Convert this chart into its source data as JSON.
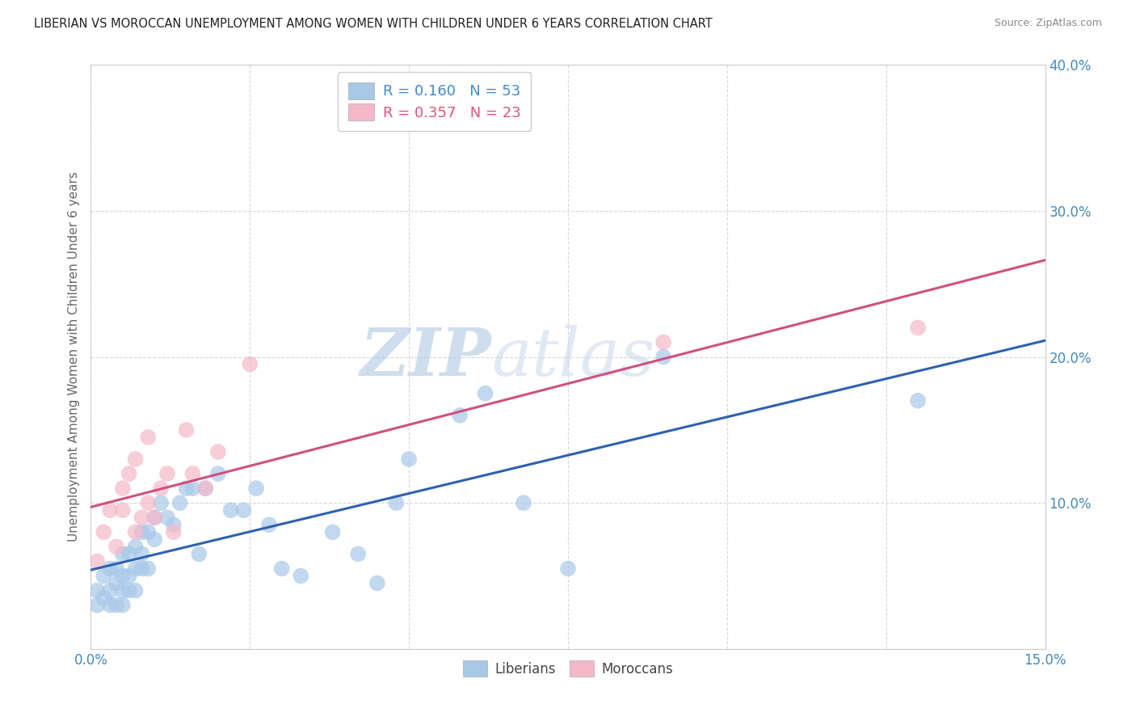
{
  "title": "LIBERIAN VS MOROCCAN UNEMPLOYMENT AMONG WOMEN WITH CHILDREN UNDER 6 YEARS CORRELATION CHART",
  "source": "Source: ZipAtlas.com",
  "ylabel": "Unemployment Among Women with Children Under 6 years",
  "xlim": [
    0,
    0.15
  ],
  "ylim": [
    0,
    0.4
  ],
  "xticks": [
    0.0,
    0.025,
    0.05,
    0.075,
    0.1,
    0.125,
    0.15
  ],
  "yticks": [
    0.0,
    0.1,
    0.2,
    0.3,
    0.4
  ],
  "liberian_R": 0.16,
  "liberian_N": 53,
  "moroccan_R": 0.357,
  "moroccan_N": 23,
  "liberian_color": "#a8c8e8",
  "moroccan_color": "#f4b8c8",
  "liberian_line_color": "#3060b0",
  "moroccan_line_color": "#d05080",
  "liberian_legend_color": "#4488cc",
  "moroccan_legend_color": "#dd5577",
  "watermark": "ZIPatlas",
  "watermark_color": "#d0e0f0",
  "background_color": "#ffffff",
  "grid_color": "#d8d8d8",
  "title_color": "#222222",
  "axis_label_color": "#4488bb",
  "tick_color": "#4488bb",
  "liberian_x": [
    0.001,
    0.001,
    0.002,
    0.002,
    0.003,
    0.003,
    0.003,
    0.004,
    0.004,
    0.004,
    0.005,
    0.005,
    0.005,
    0.005,
    0.006,
    0.006,
    0.006,
    0.007,
    0.007,
    0.007,
    0.008,
    0.008,
    0.008,
    0.009,
    0.009,
    0.01,
    0.01,
    0.011,
    0.012,
    0.013,
    0.014,
    0.015,
    0.016,
    0.017,
    0.018,
    0.02,
    0.022,
    0.024,
    0.026,
    0.028,
    0.03,
    0.033,
    0.038,
    0.042,
    0.045,
    0.048,
    0.05,
    0.058,
    0.062,
    0.068,
    0.075,
    0.09,
    0.13
  ],
  "liberian_y": [
    0.04,
    0.03,
    0.035,
    0.05,
    0.04,
    0.055,
    0.03,
    0.045,
    0.055,
    0.03,
    0.03,
    0.04,
    0.05,
    0.065,
    0.04,
    0.05,
    0.065,
    0.04,
    0.055,
    0.07,
    0.055,
    0.065,
    0.08,
    0.055,
    0.08,
    0.075,
    0.09,
    0.1,
    0.09,
    0.085,
    0.1,
    0.11,
    0.11,
    0.065,
    0.11,
    0.12,
    0.095,
    0.095,
    0.11,
    0.085,
    0.055,
    0.05,
    0.08,
    0.065,
    0.045,
    0.1,
    0.13,
    0.16,
    0.175,
    0.1,
    0.055,
    0.2,
    0.17
  ],
  "moroccan_x": [
    0.001,
    0.002,
    0.003,
    0.004,
    0.005,
    0.005,
    0.006,
    0.007,
    0.007,
    0.008,
    0.009,
    0.009,
    0.01,
    0.011,
    0.012,
    0.013,
    0.015,
    0.016,
    0.018,
    0.02,
    0.025,
    0.09,
    0.13
  ],
  "moroccan_y": [
    0.06,
    0.08,
    0.095,
    0.07,
    0.095,
    0.11,
    0.12,
    0.08,
    0.13,
    0.09,
    0.1,
    0.145,
    0.09,
    0.11,
    0.12,
    0.08,
    0.15,
    0.12,
    0.11,
    0.135,
    0.195,
    0.21,
    0.22
  ]
}
